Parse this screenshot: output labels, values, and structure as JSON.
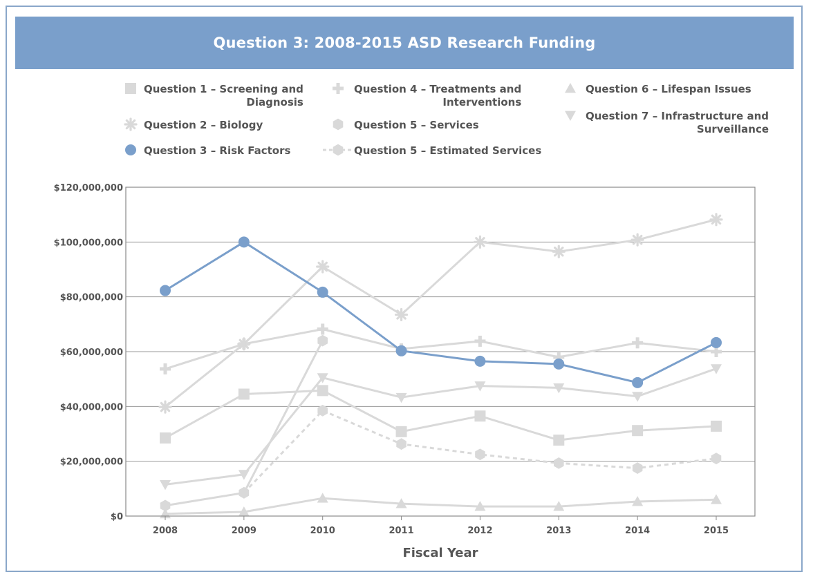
{
  "chart_data": {
    "type": "line",
    "title": "Question 3: 2008-2015 ASD Research Funding",
    "xlabel": "Fiscal Year",
    "ylabel": "",
    "categories": [
      "2008",
      "2009",
      "2010",
      "2011",
      "2012",
      "2013",
      "2014",
      "2015"
    ],
    "ylim": [
      0,
      120000000
    ],
    "yticks": [
      0,
      20000000,
      40000000,
      60000000,
      80000000,
      100000000,
      120000000
    ],
    "ytick_labels": [
      "$0",
      "$20,000,000",
      "$40,000,000",
      "$60,000,000",
      "$80,000,000",
      "$100,000,000",
      "$120,000,000"
    ],
    "grid": true,
    "legend_placement": "top",
    "series": [
      {
        "key": "q1",
        "name": "Question 1 – Screening and Diagnosis",
        "legend_lines": [
          "Question 1 – Screening and",
          "Diagnosis"
        ],
        "marker": "square",
        "color": "#d9d9d9",
        "dashed": false,
        "values": [
          28500000,
          44500000,
          45800000,
          30800000,
          36500000,
          27700000,
          31200000,
          32800000
        ]
      },
      {
        "key": "q2",
        "name": "Question 2 – Biology",
        "legend_lines": [
          "Question 2 – Biology"
        ],
        "marker": "asterisk",
        "color": "#d9d9d9",
        "dashed": false,
        "values": [
          39800000,
          62800000,
          91000000,
          73500000,
          100000000,
          96500000,
          100800000,
          108200000
        ]
      },
      {
        "key": "q3",
        "name": "Question 3 – Risk Factors",
        "legend_lines": [
          "Question 3 – Risk Factors"
        ],
        "marker": "circle",
        "color": "#7a9fcb",
        "dashed": false,
        "values": [
          82300000,
          100000000,
          81700000,
          60300000,
          56500000,
          55500000,
          48700000,
          63300000
        ]
      },
      {
        "key": "q4",
        "name": "Question 4 – Treatments and Interventions",
        "legend_lines": [
          "Question 4 – Treatments and",
          "Interventions"
        ],
        "marker": "plus",
        "color": "#d9d9d9",
        "dashed": false,
        "values": [
          53700000,
          62800000,
          68200000,
          61000000,
          63800000,
          58000000,
          63200000,
          60000000
        ]
      },
      {
        "key": "q5",
        "name": "Question 5 – Services",
        "legend_lines": [
          "Question 5 – Services"
        ],
        "marker": "hexagon",
        "color": "#d9d9d9",
        "dashed": false,
        "values": [
          3800000,
          8500000,
          64000000,
          null,
          null,
          null,
          null,
          null
        ]
      },
      {
        "key": "q5e",
        "name": "Question 5 – Estimated Services",
        "legend_lines": [
          "Question 5 – Estimated Services"
        ],
        "marker": "hexagon",
        "color": "#d9d9d9",
        "dashed": true,
        "values": [
          null,
          8500000,
          38500000,
          26300000,
          22500000,
          19300000,
          17500000,
          21000000
        ]
      },
      {
        "key": "q6",
        "name": "Question 6 – Lifespan Issues",
        "legend_lines": [
          "Question 6 – Lifespan Issues"
        ],
        "marker": "triangle-up",
        "color": "#d9d9d9",
        "dashed": false,
        "values": [
          800000,
          1500000,
          6500000,
          4500000,
          3500000,
          3500000,
          5300000,
          6000000
        ]
      },
      {
        "key": "q7",
        "name": "Question 7 – Infrastructure and Surveillance",
        "legend_lines": [
          "Question 7 – Infrastructure and",
          "Surveillance"
        ],
        "marker": "triangle-down",
        "color": "#d9d9d9",
        "dashed": false,
        "values": [
          11500000,
          15200000,
          50500000,
          43300000,
          47500000,
          46800000,
          43700000,
          53800000
        ]
      }
    ]
  }
}
